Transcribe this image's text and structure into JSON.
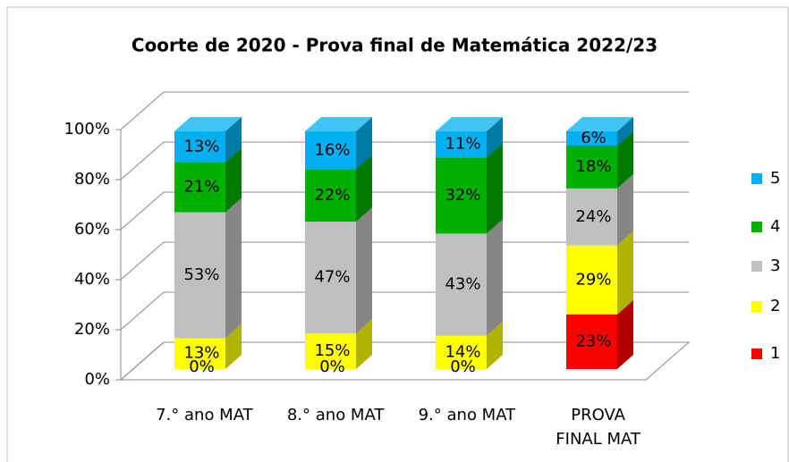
{
  "chart_data": {
    "type": "bar3d_stacked",
    "title": "Coorte de 2020 - Prova final de Matemática 2022/23",
    "categories": [
      "7.° ano MAT",
      "8.° ano MAT",
      "9.° ano MAT",
      "PROVA FINAL MAT"
    ],
    "series": [
      {
        "name": "1",
        "color": "#ff0000",
        "values": [
          0,
          0,
          0,
          23
        ],
        "value_labels": [
          "0%",
          "0%",
          "0%",
          "23%"
        ]
      },
      {
        "name": "2",
        "color": "#ffff00",
        "values": [
          13,
          15,
          14,
          29
        ],
        "value_labels": [
          "13%",
          "15%",
          "14%",
          "29%"
        ]
      },
      {
        "name": "3",
        "color": "#c0c0c0",
        "values": [
          53,
          47,
          43,
          24
        ],
        "value_labels": [
          "53%",
          "47%",
          "43%",
          "24%"
        ]
      },
      {
        "name": "4",
        "color": "#00b000",
        "values": [
          21,
          22,
          32,
          18
        ],
        "value_labels": [
          "21%",
          "22%",
          "32%",
          "18%"
        ]
      },
      {
        "name": "5",
        "color": "#00b0f0",
        "values": [
          13,
          16,
          11,
          6
        ],
        "value_labels": [
          "13%",
          "16%",
          "11%",
          "6%"
        ]
      }
    ],
    "ylim": [
      0,
      100
    ],
    "yticks": [
      {
        "value": 0,
        "label": "0%"
      },
      {
        "value": 20,
        "label": "20%"
      },
      {
        "value": 40,
        "label": "40%"
      },
      {
        "value": 60,
        "label": "60%"
      },
      {
        "value": 80,
        "label": "80%"
      },
      {
        "value": 100,
        "label": "100%"
      }
    ],
    "grid": true,
    "legend": "right"
  }
}
